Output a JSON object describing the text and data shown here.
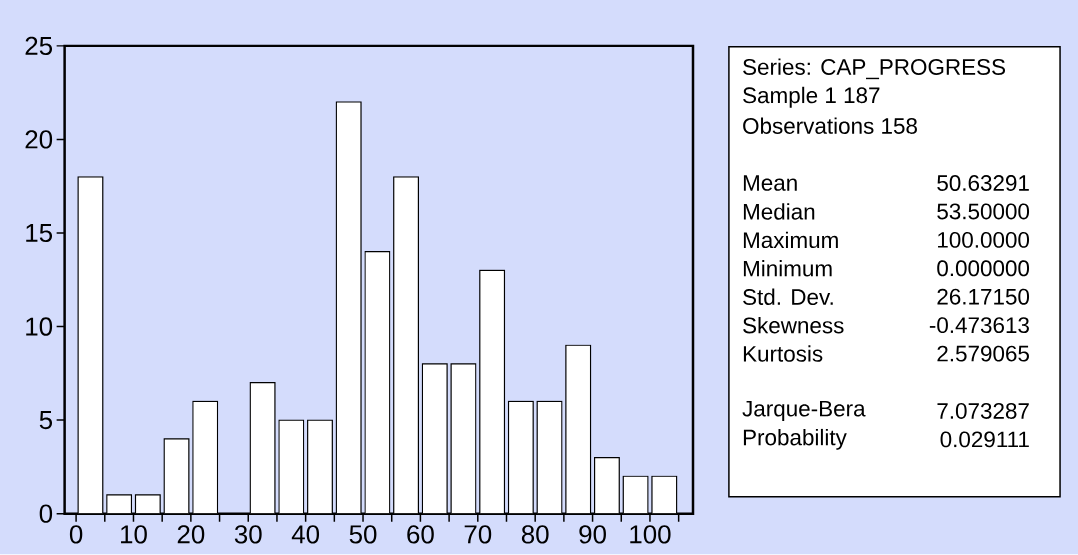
{
  "chart_data": [
    {
      "type": "histogram",
      "bins": [
        0,
        5,
        10,
        15,
        20,
        25,
        30,
        35,
        40,
        45,
        50,
        55,
        60,
        65,
        70,
        75,
        80,
        85,
        90,
        95,
        100,
        105
      ],
      "values": [
        18,
        1,
        1,
        4,
        6,
        0,
        7,
        5,
        5,
        22,
        14,
        18,
        8,
        8,
        13,
        6,
        6,
        9,
        3,
        2,
        2
      ],
      "color": "#ffffff",
      "xlim": [
        -2,
        107.5
      ],
      "ylim": [
        0,
        25
      ],
      "xticks": [
        0,
        {
          "value": 5,
          "label": null
        },
        10,
        {
          "value": 15,
          "label": null
        },
        20,
        {
          "value": 25,
          "label": null
        },
        30,
        {
          "value": 35,
          "label": null
        },
        40,
        {
          "value": 45,
          "label": null
        },
        50,
        {
          "value": 55,
          "label": null
        },
        60,
        {
          "value": 65,
          "label": null
        },
        70,
        {
          "value": 75,
          "label": null
        },
        80,
        {
          "value": 85,
          "label": null
        },
        90,
        {
          "value": 95,
          "label": null
        },
        100,
        {
          "value": 105,
          "label": null
        }
      ],
      "yticks": [
        0,
        5,
        10,
        15,
        20,
        25
      ]
    },
    {
      "type": "other",
      "annotations": [
        "Series: CAP_PROGRESS",
        "Sample 1 187",
        "Observations 158",
        "Mean",
        "50.63291",
        "Median",
        "53.50000",
        "Maximum",
        "100.0000",
        "Minimum",
        "0.000000",
        "Std. Dev.",
        "26.17150",
        "Skewness",
        "-0.473613",
        "Kurtosis",
        "2.579065",
        "Jarque-Bera",
        "7.073287",
        "Probability",
        "0.029111"
      ]
    }
  ]
}
